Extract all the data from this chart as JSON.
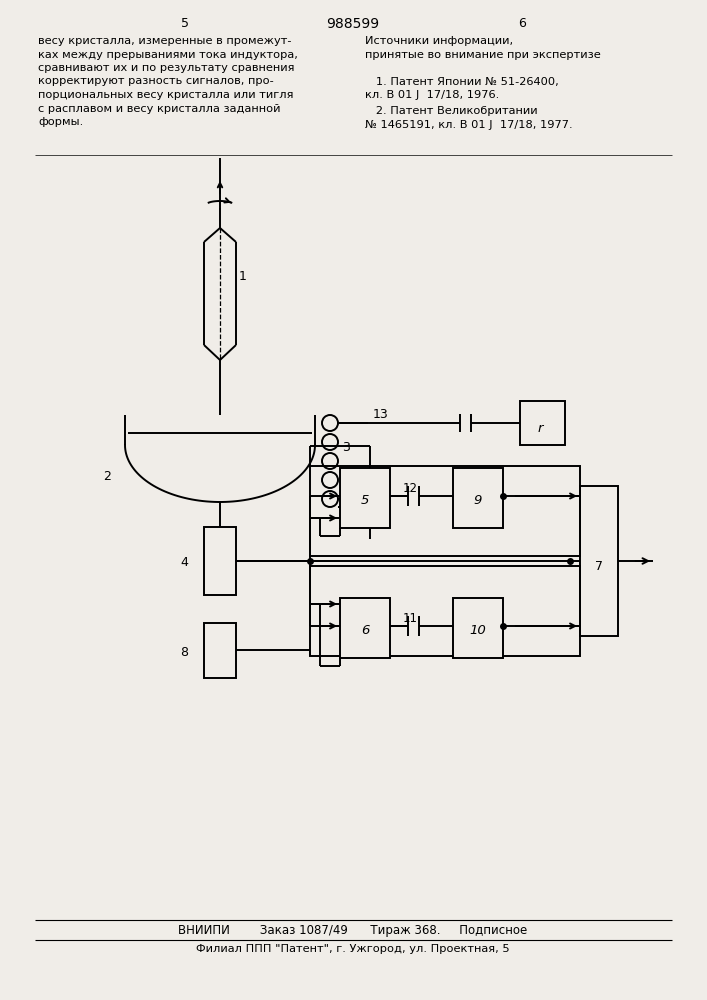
{
  "bg_color": "#f0ede8",
  "page_num_left": "5",
  "page_num_center": "988599",
  "page_num_right": "6",
  "text_left": "весу кристалла, измеренные в промежут-\nках между прерываниями тока индуктора,\nсравнивают их и по результату сравнения\nкорректируют разность сигналов, про-\nпорциональных весу кристалла или тигля\nс расплавом и весу кристалла заданной\nформы.",
  "text_right_1": "Источники информации,",
  "text_right_2": "принятые во внимание при экспертизе",
  "text_right_3": "   1. Патент Японии № 51-26400,",
  "text_right_4": "кл. В 01 J  17/18, 1976.",
  "text_right_5": "   2. Патент Великобритании",
  "text_right_6": "№ 1465191, кл. В 01 J  17/18, 1977.",
  "footer_line1": "ВНИИПИ        Заказ 1087/49      Тираж 368.     Подписное",
  "footer_line2": "Филиал ППП \"Патент\", г. Ужгород, ул. Проектная, 5"
}
